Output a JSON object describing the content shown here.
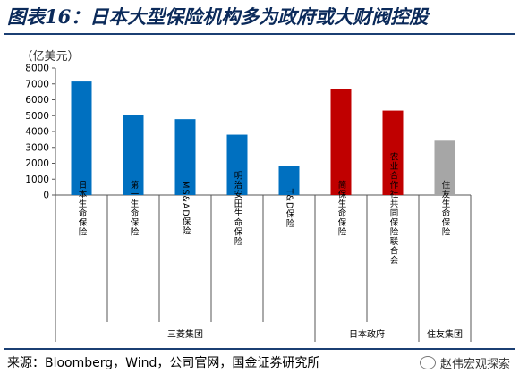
{
  "title": "图表16：日本大型保险机构多为政府或大财阀控股",
  "source": "来源：Bloomberg，Wind，公司官网，国金证券研究所",
  "watermark": "赵伟宏观探索",
  "chart_data": {
    "type": "bar",
    "unit_label": "（亿美元）",
    "ylim": [
      0,
      8000
    ],
    "yticks": [
      0,
      1000,
      2000,
      3000,
      4000,
      5000,
      6000,
      7000,
      8000
    ],
    "categories": [
      "日本生命保险",
      "第一生命保险",
      "MS&AD保险",
      "明治安田生命保险",
      "T&D保险",
      "简保生命保险",
      "农业合作社共同保险联合会",
      "住友生命保险"
    ],
    "values": [
      7150,
      5020,
      4780,
      3800,
      1840,
      6680,
      5320,
      3420
    ],
    "bar_colors": [
      "#0070c0",
      "#0070c0",
      "#0070c0",
      "#0070c0",
      "#0070c0",
      "#c00000",
      "#c00000",
      "#a6a6a6"
    ],
    "groups": [
      {
        "label": "三菱集团",
        "count": 5
      },
      {
        "label": "日本政府",
        "count": 2
      },
      {
        "label": "住友集团",
        "count": 1
      }
    ],
    "grid": false,
    "legend": "none"
  }
}
